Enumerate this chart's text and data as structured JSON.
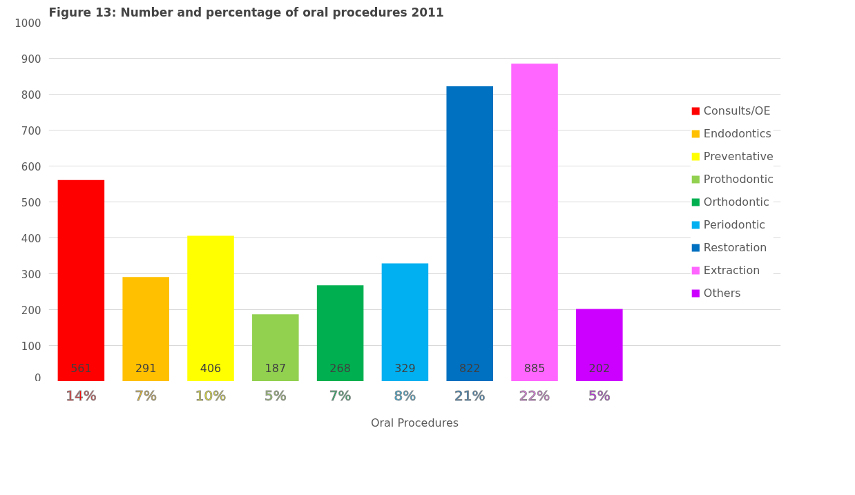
{
  "chart_data": {
    "type": "bar",
    "title": "Figure 13: Number and percentage of oral procedures 2011",
    "xlabel": "Oral Procedures",
    "categories": [
      "14%",
      "7%",
      "10%",
      "5%",
      "7%",
      "8%",
      "21%",
      "22%",
      "5%"
    ],
    "series": [
      {
        "name": "Consults/OE",
        "color": "#ff0000",
        "values": [
          561,
          null,
          null,
          null,
          null,
          null,
          null,
          null,
          null
        ]
      },
      {
        "name": "Endodontics",
        "color": "#ffc000",
        "values": [
          null,
          291,
          null,
          null,
          null,
          null,
          null,
          null,
          null
        ]
      },
      {
        "name": "Preventative",
        "color": "#ffff00",
        "values": [
          null,
          null,
          406,
          null,
          null,
          null,
          null,
          null,
          null
        ]
      },
      {
        "name": "Prothodontic",
        "color": "#92d050",
        "values": [
          null,
          null,
          null,
          187,
          null,
          null,
          null,
          null,
          null
        ]
      },
      {
        "name": "Orthodontic",
        "color": "#00b050",
        "values": [
          null,
          null,
          null,
          null,
          268,
          null,
          null,
          null,
          null
        ]
      },
      {
        "name": "Periodontic",
        "color": "#00b0f0",
        "values": [
          null,
          null,
          null,
          null,
          null,
          329,
          null,
          null,
          null
        ]
      },
      {
        "name": "Restoration",
        "color": "#0070c0",
        "values": [
          null,
          null,
          null,
          null,
          null,
          null,
          822,
          null,
          null
        ]
      },
      {
        "name": "Extraction",
        "color": "#ff66ff",
        "values": [
          null,
          null,
          null,
          null,
          null,
          null,
          null,
          885,
          null
        ]
      },
      {
        "name": "Others",
        "color": "#cc00ff",
        "values": [
          null,
          null,
          null,
          null,
          null,
          null,
          null,
          null,
          202
        ]
      }
    ],
    "ylim": [
      0,
      1000
    ],
    "yticks": [
      0,
      100,
      200,
      300,
      400,
      500,
      600,
      700,
      800,
      900,
      1000
    ],
    "grid": "y",
    "legend": "right",
    "data_labels": true
  }
}
